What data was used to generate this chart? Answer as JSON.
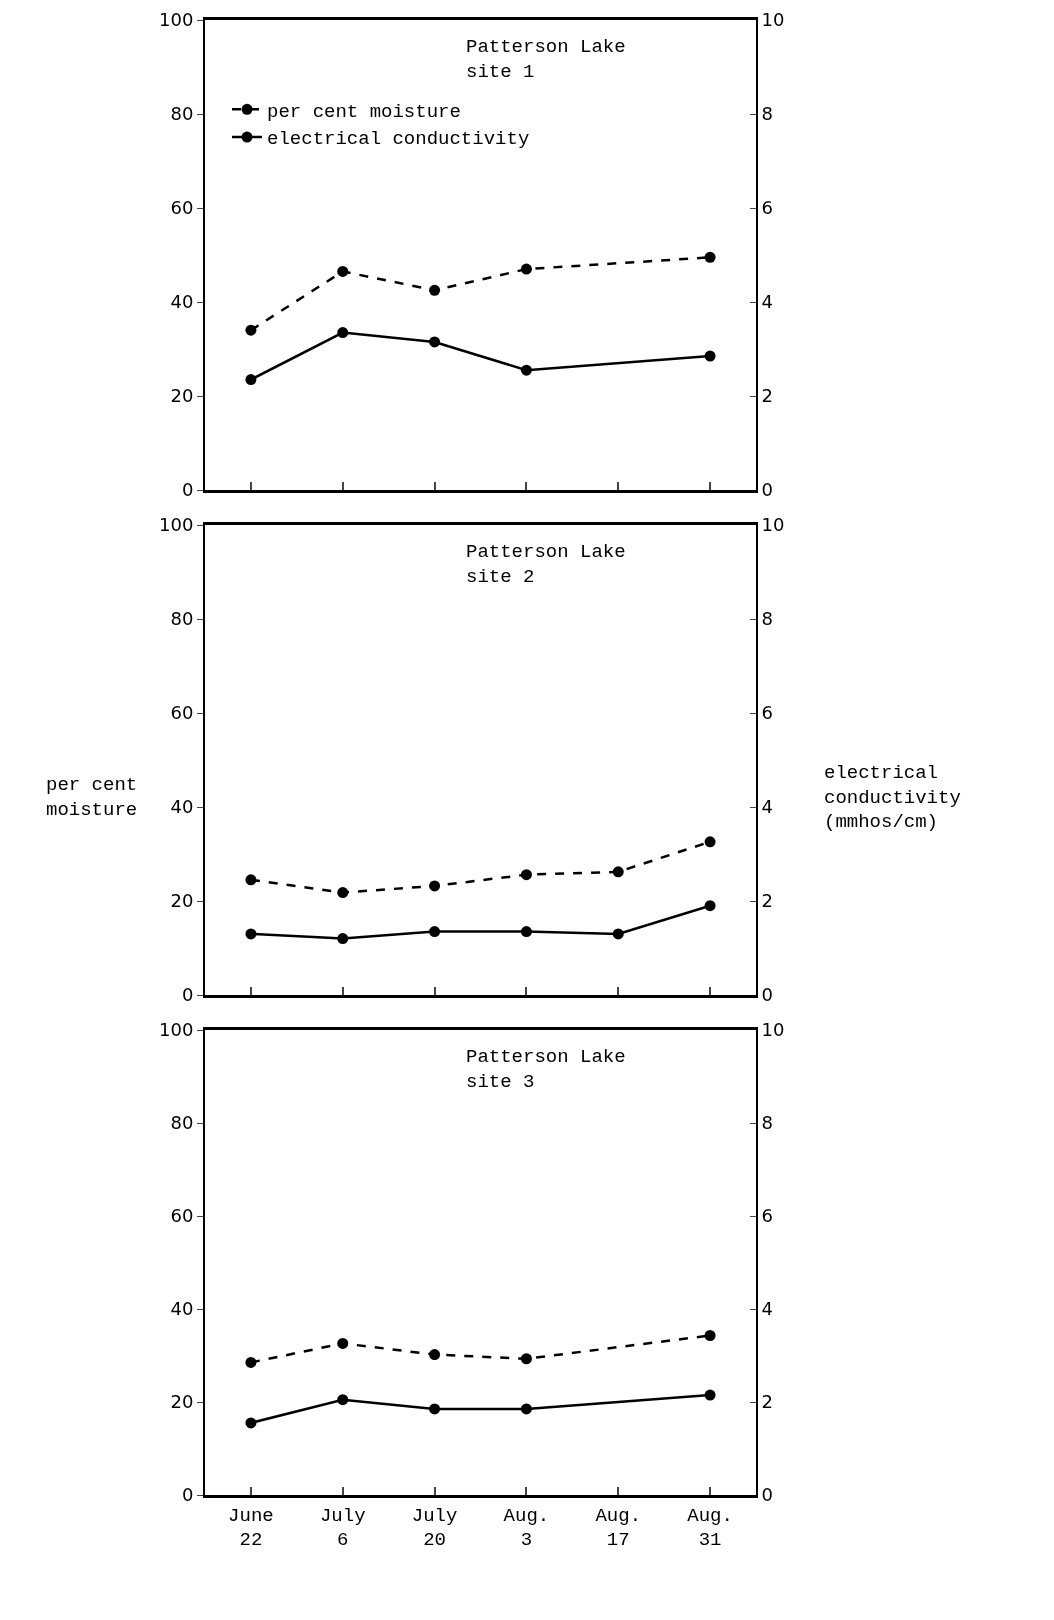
{
  "chart_data": [
    {
      "type": "line",
      "title": "Patterson Lake\nsite 1",
      "categories": [
        null,
        null,
        null,
        null,
        null,
        null
      ],
      "ylim": [
        0,
        100
      ],
      "yticks": [
        0,
        20,
        40,
        60,
        80,
        100
      ],
      "y2lim": [
        0,
        10
      ],
      "y2ticks": [
        0,
        2,
        4,
        6,
        8,
        10
      ],
      "tick_labels": "y",
      "legend": "top",
      "marker": "circle",
      "grid": false,
      "series": [
        {
          "name": "per cent moisture",
          "color": "#000000",
          "line_style": "dashed",
          "values": [
            34,
            46.5,
            42.5,
            47,
            null,
            49.5
          ]
        },
        {
          "name": "electrical conductivity",
          "color": "#000000",
          "line_style": "solid",
          "axis": "y2",
          "values": [
            2.35,
            3.35,
            3.15,
            2.55,
            null,
            2.85
          ]
        }
      ]
    },
    {
      "type": "line",
      "title": "Patterson Lake\nsite 2",
      "ylabel": "per cent\nmoisture",
      "y2label": "electrical\nconductivity\n(mmhos/cm)",
      "categories": [
        null,
        null,
        null,
        null,
        null,
        null
      ],
      "ylim": [
        0,
        100
      ],
      "yticks": [
        0,
        20,
        40,
        60,
        80,
        100
      ],
      "y2lim": [
        0,
        10
      ],
      "y2ticks": [
        0,
        2,
        4,
        6,
        8,
        10
      ],
      "tick_labels": "y",
      "marker": "circle",
      "grid": false,
      "series": [
        {
          "color": "#000000",
          "line_style": "dashed",
          "values": [
            24.5,
            21.8,
            23.2,
            25.6,
            26.2,
            32.6
          ]
        },
        {
          "color": "#000000",
          "line_style": "solid",
          "axis": "y2",
          "values": [
            1.3,
            1.2,
            1.35,
            1.35,
            1.3,
            1.9
          ]
        }
      ]
    },
    {
      "type": "line",
      "title": "Patterson Lake\nsite 3",
      "categories": [
        "June 22",
        "July 6",
        "July 20",
        "Aug. 3",
        "Aug. 17",
        "Aug. 31"
      ],
      "ylim": [
        0,
        100
      ],
      "yticks": [
        0,
        20,
        40,
        60,
        80,
        100
      ],
      "y2lim": [
        0,
        10
      ],
      "y2ticks": [
        0,
        2,
        4,
        6,
        8,
        10
      ],
      "marker": "circle",
      "grid": false,
      "series": [
        {
          "color": "#000000",
          "line_style": "dashed",
          "values": [
            28.5,
            32.6,
            30.2,
            29.3,
            null,
            34.3
          ]
        },
        {
          "color": "#000000",
          "line_style": "solid",
          "axis": "y2",
          "values": [
            1.55,
            2.05,
            1.85,
            1.85,
            null,
            2.15
          ]
        }
      ]
    }
  ]
}
